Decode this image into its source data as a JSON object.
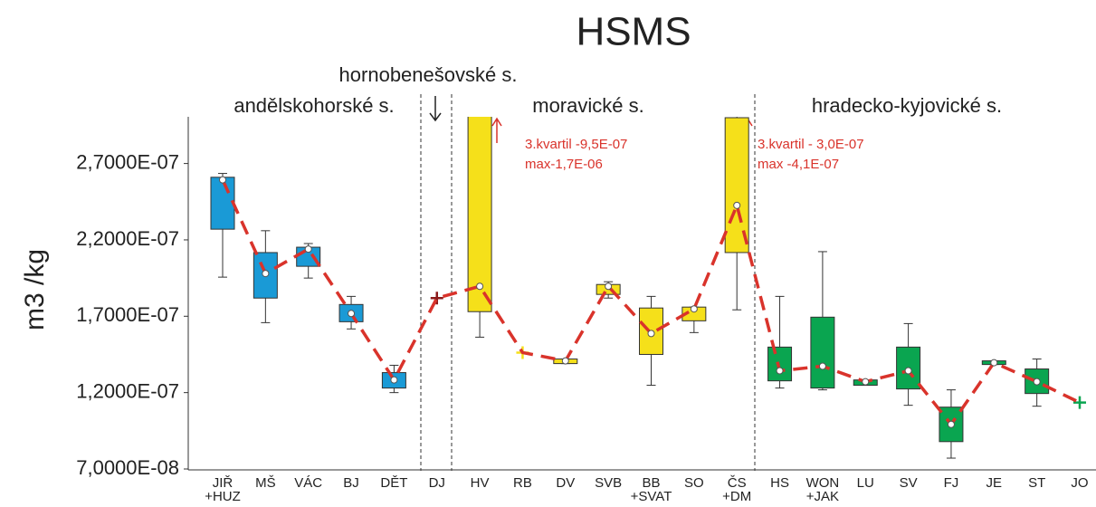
{
  "chart_data": {
    "type": "box",
    "title": "HSMS",
    "y_label": "m3 /kg",
    "ylim": [
      7e-08,
      3e-07
    ],
    "yticks": [
      {
        "value": 7e-08,
        "label": "7,0000E-08"
      },
      {
        "value": 1.2e-07,
        "label": "1,2000E-07"
      },
      {
        "value": 1.7e-07,
        "label": "1,7000E-07"
      },
      {
        "value": 2.2e-07,
        "label": "2,2000E-07"
      },
      {
        "value": 2.7e-07,
        "label": "2,7000E-07"
      }
    ],
    "groups": [
      "andělskohorské s.",
      "hornobenešovské s.",
      "moravické s.",
      "hradecko-kyjovické s."
    ],
    "annotations": [
      "3.kvartil -9,5E-07",
      "max-1,7E-06",
      "3.kvartil - 3,0E-07",
      "max -4,1E-07"
    ],
    "items": [
      {
        "label": "JIŘ +HUZ",
        "color": "#1a9ad6",
        "min": 1.956e-07,
        "q1": 2.27e-07,
        "median": 2.593e-07,
        "q3": 2.61e-07,
        "max": 2.635e-07
      },
      {
        "label": "MŠ",
        "color": "#1a9ad6",
        "min": 1.658e-07,
        "q1": 1.819e-07,
        "median": 1.98e-07,
        "q3": 2.117e-07,
        "max": 2.26e-07
      },
      {
        "label": "VÁC",
        "color": "#1a9ad6",
        "min": 1.95e-07,
        "q1": 2.027e-07,
        "median": 2.14e-07,
        "q3": 2.152e-07,
        "max": 2.176e-07
      },
      {
        "label": "BJ",
        "color": "#1a9ad6",
        "min": 1.617e-07,
        "q1": 1.664e-07,
        "median": 1.718e-07,
        "q3": 1.777e-07,
        "max": 1.83e-07
      },
      {
        "label": "DĚT",
        "color": "#1a9ad6",
        "min": 1.2e-07,
        "q1": 1.23e-07,
        "median": 1.283e-07,
        "q3": 1.331e-07,
        "max": 1.379e-07
      },
      {
        "label": "DJ",
        "color": "#8b1a1a",
        "value": 1.819e-07
      },
      {
        "label": "HV",
        "color": "#f5e01a",
        "min": 1.563e-07,
        "q1": 1.73e-07,
        "median": 1.896e-07,
        "q3": 9.5e-07,
        "max": 1.7e-06
      },
      {
        "label": "RB",
        "color": "#f5e01a",
        "value": 1.462e-07
      },
      {
        "label": "DV",
        "color": "#f5e01a",
        "min": 1.39e-07,
        "q1": 1.39e-07,
        "median": 1.408e-07,
        "q3": 1.42e-07,
        "max": 1.42e-07
      },
      {
        "label": "SVB",
        "color": "#f5e01a",
        "min": 1.819e-07,
        "q1": 1.843e-07,
        "median": 1.896e-07,
        "q3": 1.908e-07,
        "max": 1.926e-07
      },
      {
        "label": "BB +SVAT",
        "color": "#f5e01a",
        "min": 1.248e-07,
        "q1": 1.45e-07,
        "median": 1.587e-07,
        "q3": 1.754e-07,
        "max": 1.83e-07
      },
      {
        "label": "SO",
        "color": "#f5e01a",
        "min": 1.593e-07,
        "q1": 1.67e-07,
        "median": 1.748e-07,
        "q3": 1.76e-07,
        "max": 1.76e-07
      },
      {
        "label": "ČS +DM",
        "color": "#f5e01a",
        "min": 1.742e-07,
        "q1": 2.117e-07,
        "median": 2.426e-07,
        "q3": 3e-07,
        "max": 4.1e-07
      },
      {
        "label": "HS",
        "color": "#0aa550",
        "min": 1.23e-07,
        "q1": 1.277e-07,
        "median": 1.343e-07,
        "q3": 1.498e-07,
        "max": 1.83e-07
      },
      {
        "label": "WON +JAK",
        "color": "#0aa550",
        "min": 1.218e-07,
        "q1": 1.23e-07,
        "median": 1.373e-07,
        "q3": 1.694e-07,
        "max": 2.123e-07
      },
      {
        "label": "LU",
        "color": "#0aa550",
        "min": 1.248e-07,
        "q1": 1.248e-07,
        "median": 1.271e-07,
        "q3": 1.283e-07,
        "max": 1.283e-07
      },
      {
        "label": "SV",
        "color": "#0aa550",
        "min": 1.117e-07,
        "q1": 1.224e-07,
        "median": 1.343e-07,
        "q3": 1.498e-07,
        "max": 1.652e-07
      },
      {
        "label": "FJ",
        "color": "#0aa550",
        "min": 7.71e-08,
        "q1": 8.79e-08,
        "median": 9.92e-08,
        "q3": 1.105e-07,
        "max": 1.218e-07
      },
      {
        "label": "JE",
        "color": "#0aa550",
        "min": 1.384e-07,
        "q1": 1.384e-07,
        "median": 1.396e-07,
        "q3": 1.408e-07,
        "max": 1.408e-07
      },
      {
        "label": "ST",
        "color": "#0aa550",
        "min": 1.111e-07,
        "q1": 1.194e-07,
        "median": 1.271e-07,
        "q3": 1.355e-07,
        "max": 1.42e-07
      },
      {
        "label": "JO",
        "color": "#0aa550",
        "value": 1.135e-07
      }
    ],
    "line_color": "#d9332b"
  }
}
